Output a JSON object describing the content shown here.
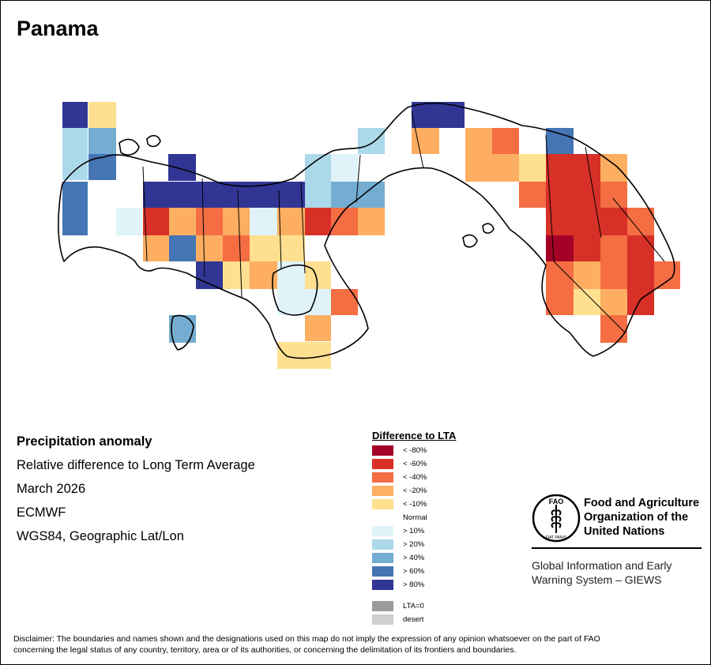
{
  "title": "Panama",
  "info": {
    "title": "Precipitation anomaly",
    "line1": "Relative difference to Long Term Average",
    "line2": "March 2026",
    "line3": "ECMWF",
    "line4": "WGS84, Geographic Lat/Lon"
  },
  "legend": {
    "title": "Difference to LTA",
    "items": [
      {
        "label": "< -80%",
        "color": "#a50026"
      },
      {
        "label": "< -60%",
        "color": "#d73027"
      },
      {
        "label": "< -40%",
        "color": "#f46d43"
      },
      {
        "label": "< -20%",
        "color": "#fdae61"
      },
      {
        "label": "< -10%",
        "color": "#fee090"
      },
      {
        "label": "Normal",
        "color": "#ffffff"
      },
      {
        "label": "> 10%",
        "color": "#e0f3f8"
      },
      {
        "label": "> 20%",
        "color": "#abd9e9"
      },
      {
        "label": "> 40%",
        "color": "#74add1"
      },
      {
        "label": "> 60%",
        "color": "#4575b4"
      },
      {
        "label": "> 80%",
        "color": "#313695"
      },
      {
        "label": "LTA=0",
        "color": "#9b9b9b"
      },
      {
        "label": "desert",
        "color": "#cfcfcf"
      }
    ]
  },
  "organization": {
    "logo_text": "FAO",
    "logo_motto": "FIAT PANIS",
    "name_line1": "Food and Agriculture",
    "name_line2": "Organization of the",
    "name_line3": "United Nations",
    "system_line1": "Global Information and Early",
    "system_line2": "Warning System – GIEWS"
  },
  "disclaimer_line1": "Disclaimer: The boundaries and names shown and the designations used on this map do not imply the expression of any opinion whatsoever on the part of FAO",
  "disclaimer_line2": "concerning the legal status of any country, territory, area or of its authorities, or concerning the delimitation of its frontiers and boundaries."
}
